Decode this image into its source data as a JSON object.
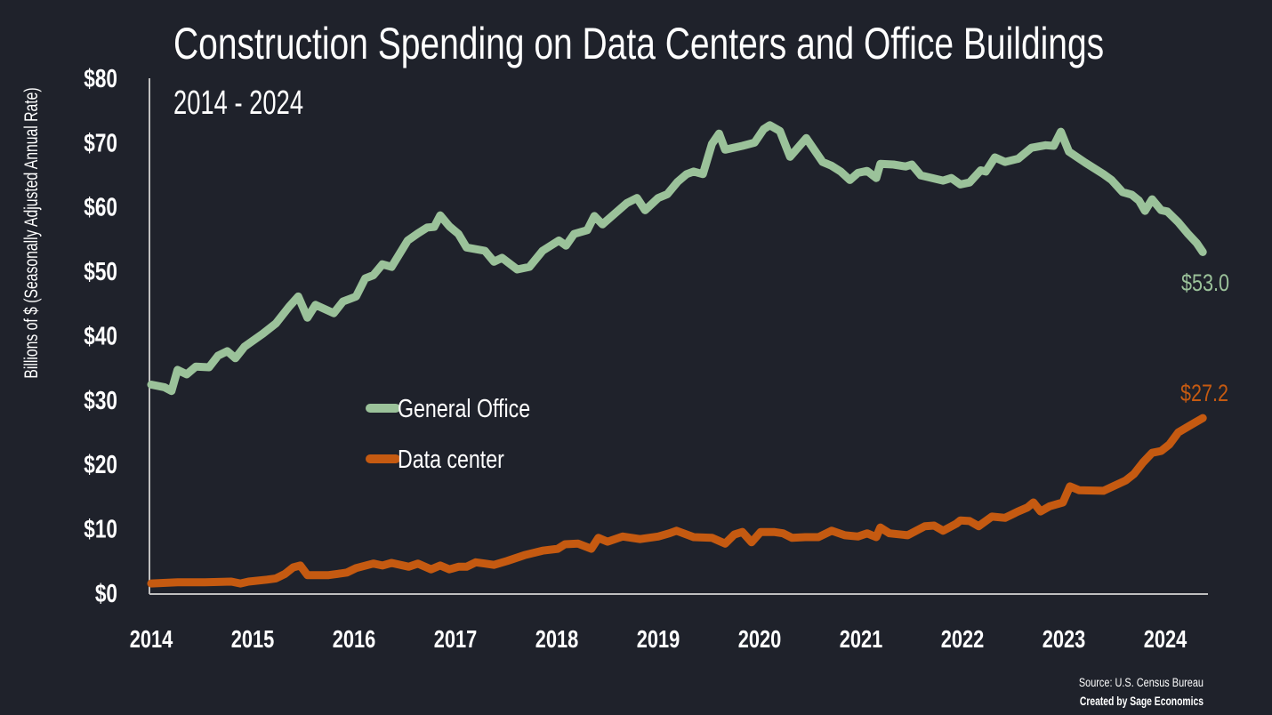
{
  "colors": {
    "background": "#1f222b",
    "general_office": "#9bc29a",
    "data_center": "#c55a11",
    "text": "#ffffff",
    "axis": "#bfbfbf"
  },
  "chart_data": {
    "type": "line",
    "title": "Construction Spending on Data Centers and Office Buildings",
    "subtitle": "2014 - 2024",
    "xlabel": "",
    "ylabel": "Billions of $ (Seasonally Adjusted Annual Rate)",
    "xlim": [
      2014,
      2024.4
    ],
    "ylim": [
      0,
      80
    ],
    "x_ticks": [
      "2014",
      "2015",
      "2016",
      "2017",
      "2018",
      "2019",
      "2020",
      "2021",
      "2022",
      "2023",
      "2024"
    ],
    "y_ticks": [
      "$0",
      "$10",
      "$20",
      "$30",
      "$40",
      "$50",
      "$60",
      "$70",
      "$80"
    ],
    "grid": false,
    "legend_placement": "center-left",
    "series": [
      {
        "name": "General Office",
        "end_label": "$53.0",
        "points": [
          [
            2014.0,
            32.4
          ],
          [
            2014.13,
            32.0
          ],
          [
            2014.2,
            31.4
          ],
          [
            2014.26,
            34.7
          ],
          [
            2014.35,
            34.0
          ],
          [
            2014.44,
            35.2
          ],
          [
            2014.57,
            35.1
          ],
          [
            2014.66,
            36.9
          ],
          [
            2014.75,
            37.6
          ],
          [
            2014.83,
            36.5
          ],
          [
            2014.92,
            38.3
          ],
          [
            2015.1,
            40.3
          ],
          [
            2015.23,
            41.9
          ],
          [
            2015.36,
            44.5
          ],
          [
            2015.45,
            46.1
          ],
          [
            2015.54,
            42.8
          ],
          [
            2015.62,
            44.8
          ],
          [
            2015.8,
            43.5
          ],
          [
            2015.89,
            45.3
          ],
          [
            2016.02,
            46.1
          ],
          [
            2016.11,
            48.9
          ],
          [
            2016.19,
            49.4
          ],
          [
            2016.28,
            51.1
          ],
          [
            2016.37,
            50.7
          ],
          [
            2016.53,
            54.8
          ],
          [
            2016.63,
            55.9
          ],
          [
            2016.72,
            56.8
          ],
          [
            2016.79,
            56.9
          ],
          [
            2016.85,
            58.7
          ],
          [
            2016.94,
            57.0
          ],
          [
            2017.03,
            55.8
          ],
          [
            2017.11,
            53.7
          ],
          [
            2017.29,
            53.2
          ],
          [
            2017.38,
            51.5
          ],
          [
            2017.46,
            52.1
          ],
          [
            2017.61,
            50.3
          ],
          [
            2017.73,
            50.7
          ],
          [
            2017.86,
            53.2
          ],
          [
            2018.02,
            54.8
          ],
          [
            2018.09,
            54.0
          ],
          [
            2018.17,
            55.8
          ],
          [
            2018.3,
            56.4
          ],
          [
            2018.37,
            58.6
          ],
          [
            2018.45,
            57.3
          ],
          [
            2018.56,
            58.8
          ],
          [
            2018.69,
            60.6
          ],
          [
            2018.79,
            61.4
          ],
          [
            2018.87,
            59.5
          ],
          [
            2019.0,
            61.4
          ],
          [
            2019.09,
            62.0
          ],
          [
            2019.19,
            63.9
          ],
          [
            2019.28,
            65.1
          ],
          [
            2019.35,
            65.5
          ],
          [
            2019.44,
            65.1
          ],
          [
            2019.53,
            69.8
          ],
          [
            2019.6,
            71.4
          ],
          [
            2019.66,
            68.9
          ],
          [
            2019.83,
            69.5
          ],
          [
            2019.95,
            70.0
          ],
          [
            2020.04,
            72.1
          ],
          [
            2020.1,
            72.7
          ],
          [
            2020.2,
            71.8
          ],
          [
            2020.3,
            67.8
          ],
          [
            2020.46,
            70.7
          ],
          [
            2020.62,
            67.0
          ],
          [
            2020.71,
            66.4
          ],
          [
            2020.8,
            65.5
          ],
          [
            2020.89,
            64.2
          ],
          [
            2020.97,
            65.3
          ],
          [
            2021.06,
            65.6
          ],
          [
            2021.15,
            64.5
          ],
          [
            2021.19,
            66.7
          ],
          [
            2021.32,
            66.6
          ],
          [
            2021.44,
            66.3
          ],
          [
            2021.5,
            66.6
          ],
          [
            2021.59,
            64.9
          ],
          [
            2021.81,
            64.1
          ],
          [
            2021.89,
            64.5
          ],
          [
            2021.98,
            63.5
          ],
          [
            2022.07,
            63.8
          ],
          [
            2022.18,
            65.7
          ],
          [
            2022.23,
            65.5
          ],
          [
            2022.32,
            67.7
          ],
          [
            2022.42,
            67.0
          ],
          [
            2022.55,
            67.5
          ],
          [
            2022.68,
            69.2
          ],
          [
            2022.82,
            69.6
          ],
          [
            2022.9,
            69.5
          ],
          [
            2022.97,
            71.7
          ],
          [
            2023.05,
            68.6
          ],
          [
            2023.21,
            66.9
          ],
          [
            2023.39,
            65.1
          ],
          [
            2023.47,
            64.2
          ],
          [
            2023.58,
            62.3
          ],
          [
            2023.67,
            61.9
          ],
          [
            2023.74,
            61.0
          ],
          [
            2023.8,
            59.4
          ],
          [
            2023.87,
            61.2
          ],
          [
            2023.96,
            59.5
          ],
          [
            2024.02,
            59.3
          ],
          [
            2024.13,
            57.6
          ],
          [
            2024.22,
            55.9
          ],
          [
            2024.31,
            54.4
          ],
          [
            2024.37,
            53.0
          ]
        ]
      },
      {
        "name": "Data center",
        "end_label": "$27.2",
        "points": [
          [
            2014.0,
            1.5
          ],
          [
            2014.26,
            1.7
          ],
          [
            2014.53,
            1.7
          ],
          [
            2014.79,
            1.8
          ],
          [
            2014.88,
            1.5
          ],
          [
            2014.96,
            1.8
          ],
          [
            2015.14,
            2.1
          ],
          [
            2015.23,
            2.3
          ],
          [
            2015.32,
            3.0
          ],
          [
            2015.4,
            4.0
          ],
          [
            2015.47,
            4.3
          ],
          [
            2015.54,
            2.8
          ],
          [
            2015.75,
            2.8
          ],
          [
            2015.84,
            3.0
          ],
          [
            2015.93,
            3.2
          ],
          [
            2016.02,
            3.9
          ],
          [
            2016.19,
            4.6
          ],
          [
            2016.28,
            4.3
          ],
          [
            2016.37,
            4.7
          ],
          [
            2016.54,
            4.1
          ],
          [
            2016.63,
            4.6
          ],
          [
            2016.76,
            3.7
          ],
          [
            2016.85,
            4.3
          ],
          [
            2016.94,
            3.7
          ],
          [
            2017.03,
            4.1
          ],
          [
            2017.11,
            4.1
          ],
          [
            2017.2,
            4.8
          ],
          [
            2017.29,
            4.6
          ],
          [
            2017.38,
            4.4
          ],
          [
            2017.51,
            5.0
          ],
          [
            2017.68,
            5.9
          ],
          [
            2017.86,
            6.6
          ],
          [
            2018.01,
            6.9
          ],
          [
            2018.08,
            7.6
          ],
          [
            2018.21,
            7.7
          ],
          [
            2018.34,
            6.9
          ],
          [
            2018.41,
            8.6
          ],
          [
            2018.5,
            8.0
          ],
          [
            2018.65,
            8.8
          ],
          [
            2018.82,
            8.4
          ],
          [
            2019.0,
            8.8
          ],
          [
            2019.11,
            9.3
          ],
          [
            2019.18,
            9.7
          ],
          [
            2019.35,
            8.7
          ],
          [
            2019.53,
            8.6
          ],
          [
            2019.66,
            7.7
          ],
          [
            2019.75,
            9.1
          ],
          [
            2019.83,
            9.5
          ],
          [
            2019.92,
            7.9
          ],
          [
            2020.01,
            9.5
          ],
          [
            2020.14,
            9.5
          ],
          [
            2020.23,
            9.3
          ],
          [
            2020.32,
            8.6
          ],
          [
            2020.45,
            8.7
          ],
          [
            2020.58,
            8.7
          ],
          [
            2020.71,
            9.7
          ],
          [
            2020.84,
            9.0
          ],
          [
            2020.97,
            8.8
          ],
          [
            2021.06,
            9.3
          ],
          [
            2021.15,
            8.7
          ],
          [
            2021.19,
            10.2
          ],
          [
            2021.28,
            9.3
          ],
          [
            2021.46,
            9.0
          ],
          [
            2021.63,
            10.4
          ],
          [
            2021.72,
            10.5
          ],
          [
            2021.81,
            9.7
          ],
          [
            2021.94,
            10.8
          ],
          [
            2021.98,
            11.3
          ],
          [
            2022.07,
            11.2
          ],
          [
            2022.16,
            10.4
          ],
          [
            2022.29,
            11.9
          ],
          [
            2022.42,
            11.7
          ],
          [
            2022.55,
            12.7
          ],
          [
            2022.64,
            13.3
          ],
          [
            2022.7,
            14.1
          ],
          [
            2022.77,
            12.7
          ],
          [
            2022.86,
            13.5
          ],
          [
            2022.99,
            14.1
          ],
          [
            2023.06,
            16.6
          ],
          [
            2023.15,
            16.0
          ],
          [
            2023.39,
            15.9
          ],
          [
            2023.61,
            17.5
          ],
          [
            2023.69,
            18.5
          ],
          [
            2023.78,
            20.3
          ],
          [
            2023.87,
            21.8
          ],
          [
            2023.96,
            22.1
          ],
          [
            2024.04,
            23.1
          ],
          [
            2024.13,
            25.0
          ],
          [
            2024.26,
            26.2
          ],
          [
            2024.37,
            27.2
          ]
        ]
      }
    ],
    "source": "Source: U.S. Census Bureau",
    "credit": "Created by Sage Economics"
  }
}
